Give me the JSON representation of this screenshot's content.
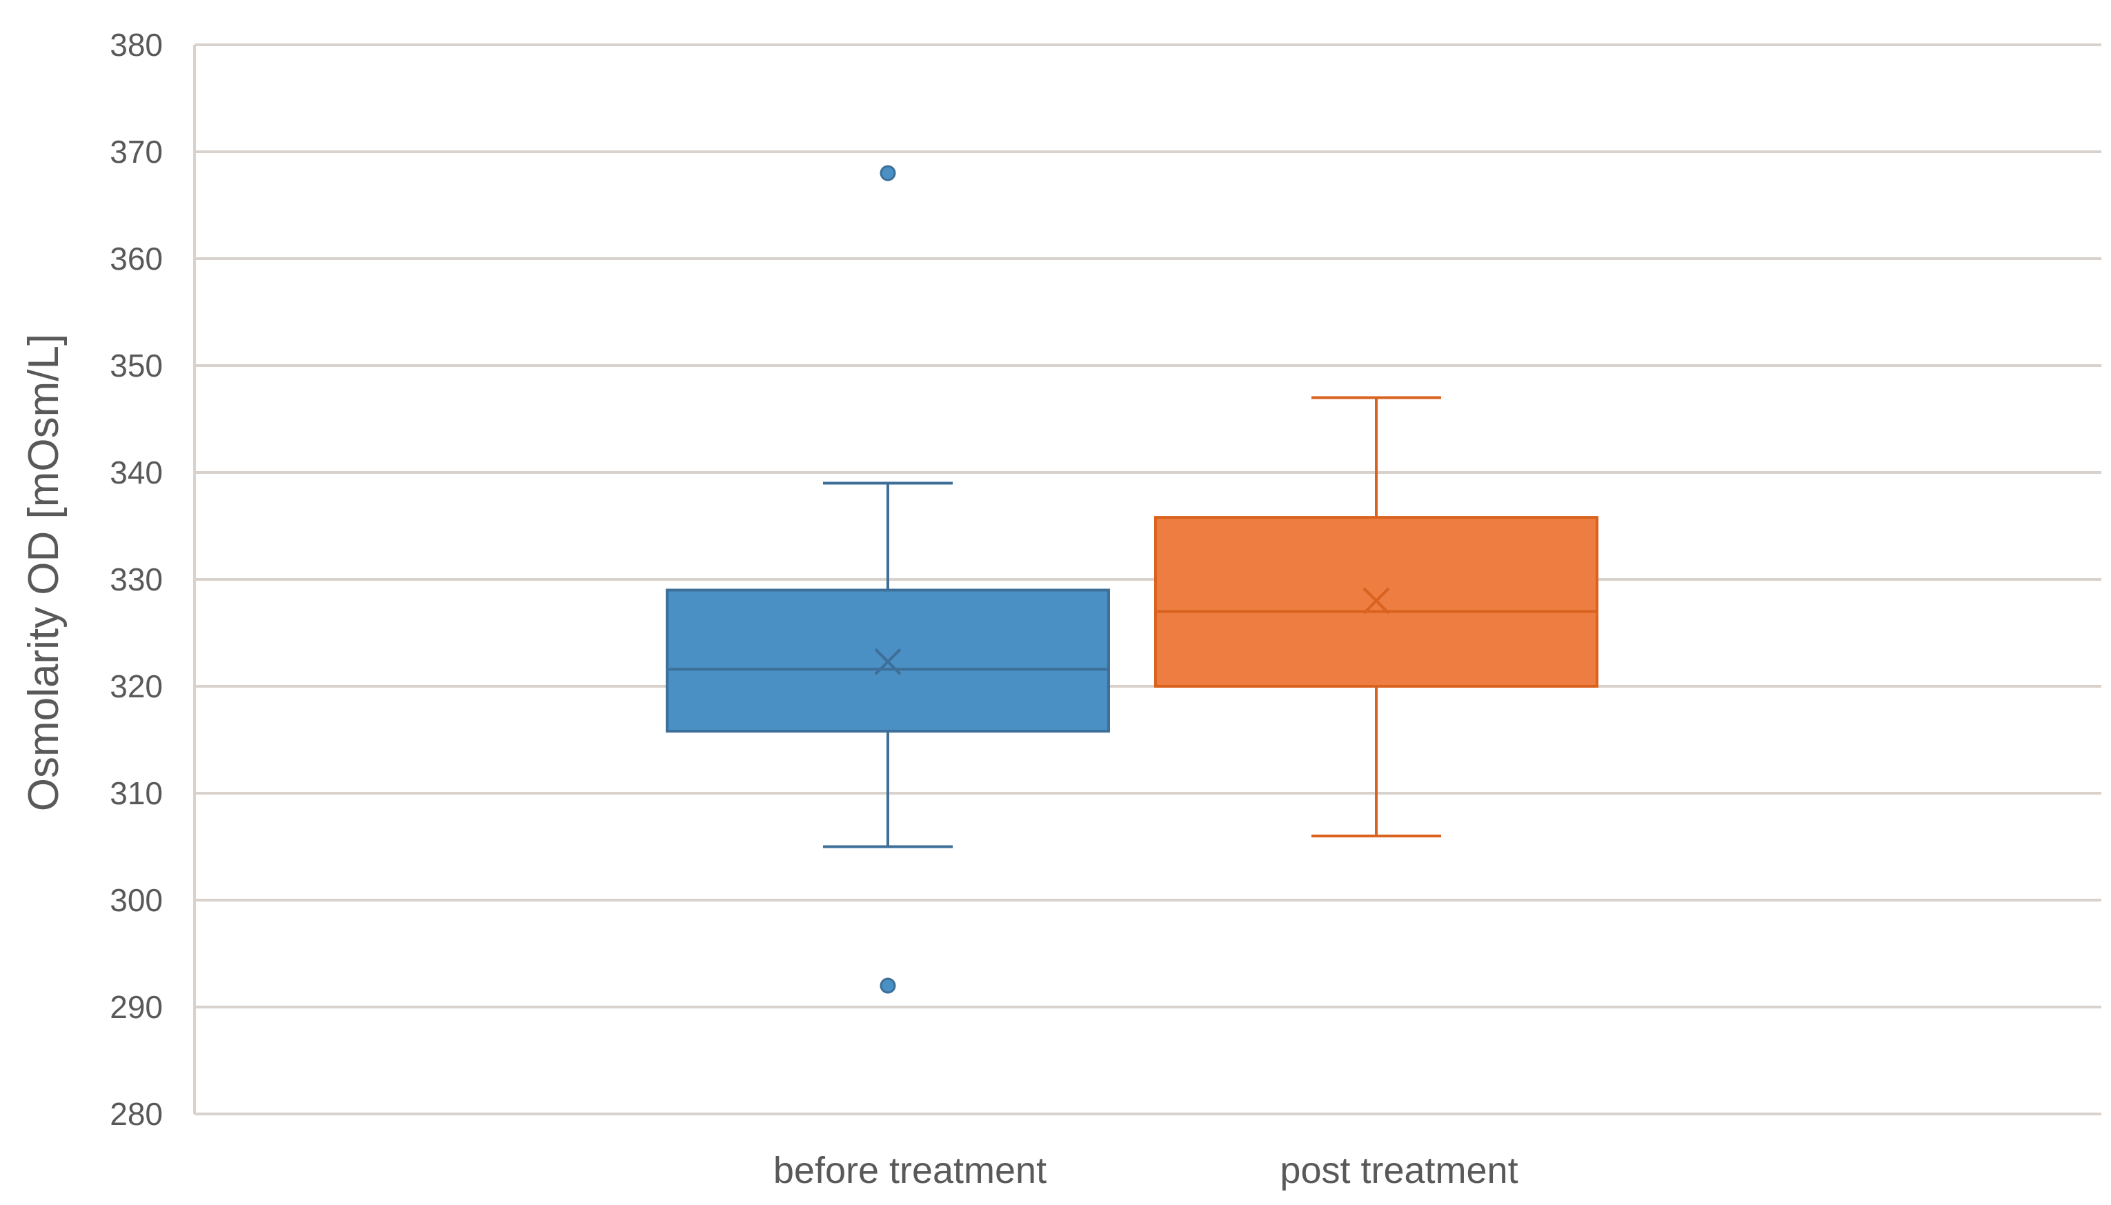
{
  "chart_data": {
    "type": "box",
    "ylabel": "Osmolarity OD [mOsm/L]",
    "xlabel": "",
    "ylim": [
      280,
      380
    ],
    "y_ticks": [
      280,
      290,
      300,
      310,
      320,
      330,
      340,
      350,
      360,
      370,
      380
    ],
    "grid": true,
    "legend": "none",
    "categories": [
      "before treatment",
      "post treatment"
    ],
    "series": [
      {
        "category": "before treatment",
        "color": "#4a90c4",
        "edge_color": "#3d6f98",
        "whisker_low": 305,
        "q1": 315.8,
        "median": 321.6,
        "mean": 322.3,
        "q3": 329,
        "whisker_high": 339,
        "outliers": [
          368,
          292
        ]
      },
      {
        "category": "post treatment",
        "color": "#ed7d41",
        "edge_color": "#d9621f",
        "whisker_low": 306,
        "q1": 320,
        "median": 327,
        "mean": 328,
        "q3": 335.8,
        "whisker_high": 347,
        "outliers": []
      }
    ]
  }
}
